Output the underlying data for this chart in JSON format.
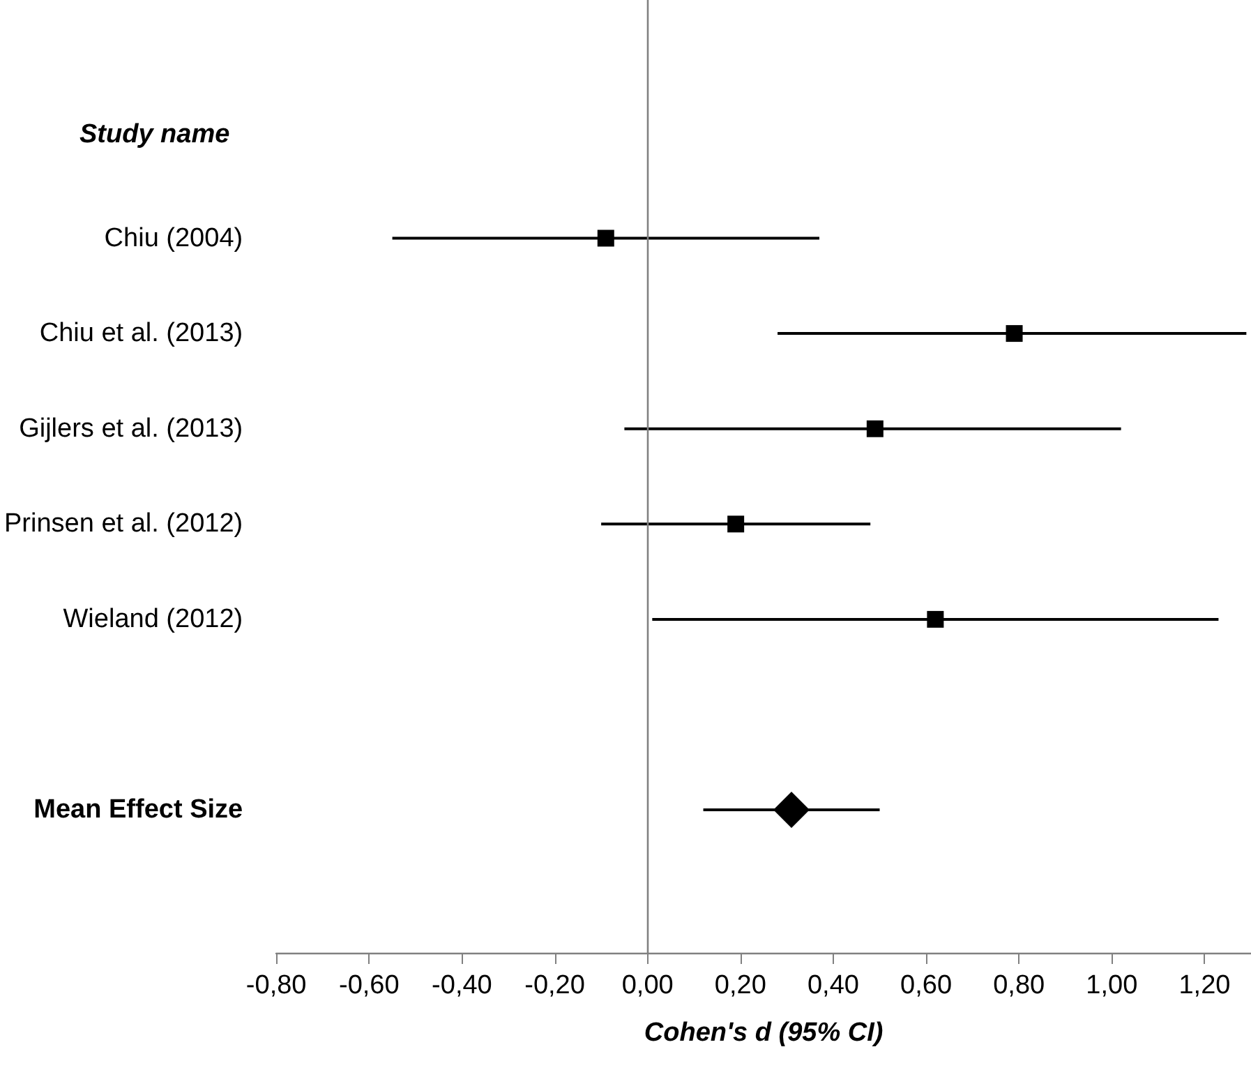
{
  "chart_data": {
    "type": "scatter",
    "orientation": "horizontal",
    "xlabel": "Cohen's d (95% CI)",
    "ylabel": "Study name",
    "categories": [
      null,
      "Chiu (2004)",
      "Chiu et al. (2013)",
      "Gijlers et al. (2013)",
      "Prinsen et al. (2012)",
      "Wieland (2012)",
      null,
      "Mean Effect Size",
      null
    ],
    "series": [
      {
        "marker": "square",
        "color": "#000000",
        "values": [
          null,
          -0.09,
          0.79,
          0.49,
          0.19,
          0.62,
          null,
          null,
          null
        ],
        "errors": [
          null,
          [
            -0.55,
            0.37
          ],
          [
            0.28,
            1.29
          ],
          [
            -0.05,
            1.02
          ],
          [
            -0.1,
            0.48
          ],
          [
            0.01,
            1.23
          ],
          null,
          null,
          null
        ]
      },
      {
        "marker": "diamond",
        "color": "#000000",
        "values": [
          null,
          null,
          null,
          null,
          null,
          null,
          null,
          0.31,
          null
        ],
        "errors": [
          null,
          null,
          null,
          null,
          null,
          null,
          null,
          [
            0.12,
            0.5
          ],
          null
        ]
      }
    ],
    "xlim": [
      -0.8,
      1.3
    ],
    "xticks": [
      {
        "value": -0.8,
        "label": "-0,80"
      },
      {
        "value": -0.6,
        "label": "-0,60"
      },
      {
        "value": -0.4,
        "label": "-0,40"
      },
      {
        "value": -0.2,
        "label": "-0,20"
      },
      {
        "value": 0,
        "label": "0,00"
      },
      {
        "value": 0.2,
        "label": "0,20"
      },
      {
        "value": 0.4,
        "label": "0,40"
      },
      {
        "value": 0.6,
        "label": "0,60"
      },
      {
        "value": 0.8,
        "label": "0,80"
      },
      {
        "value": 1.0,
        "label": "1,00"
      },
      {
        "value": 1.2,
        "label": "1,20"
      }
    ],
    "ref_lines": [
      {
        "axis": "x",
        "value": 0,
        "label": null,
        "color": "#808080"
      }
    ]
  }
}
